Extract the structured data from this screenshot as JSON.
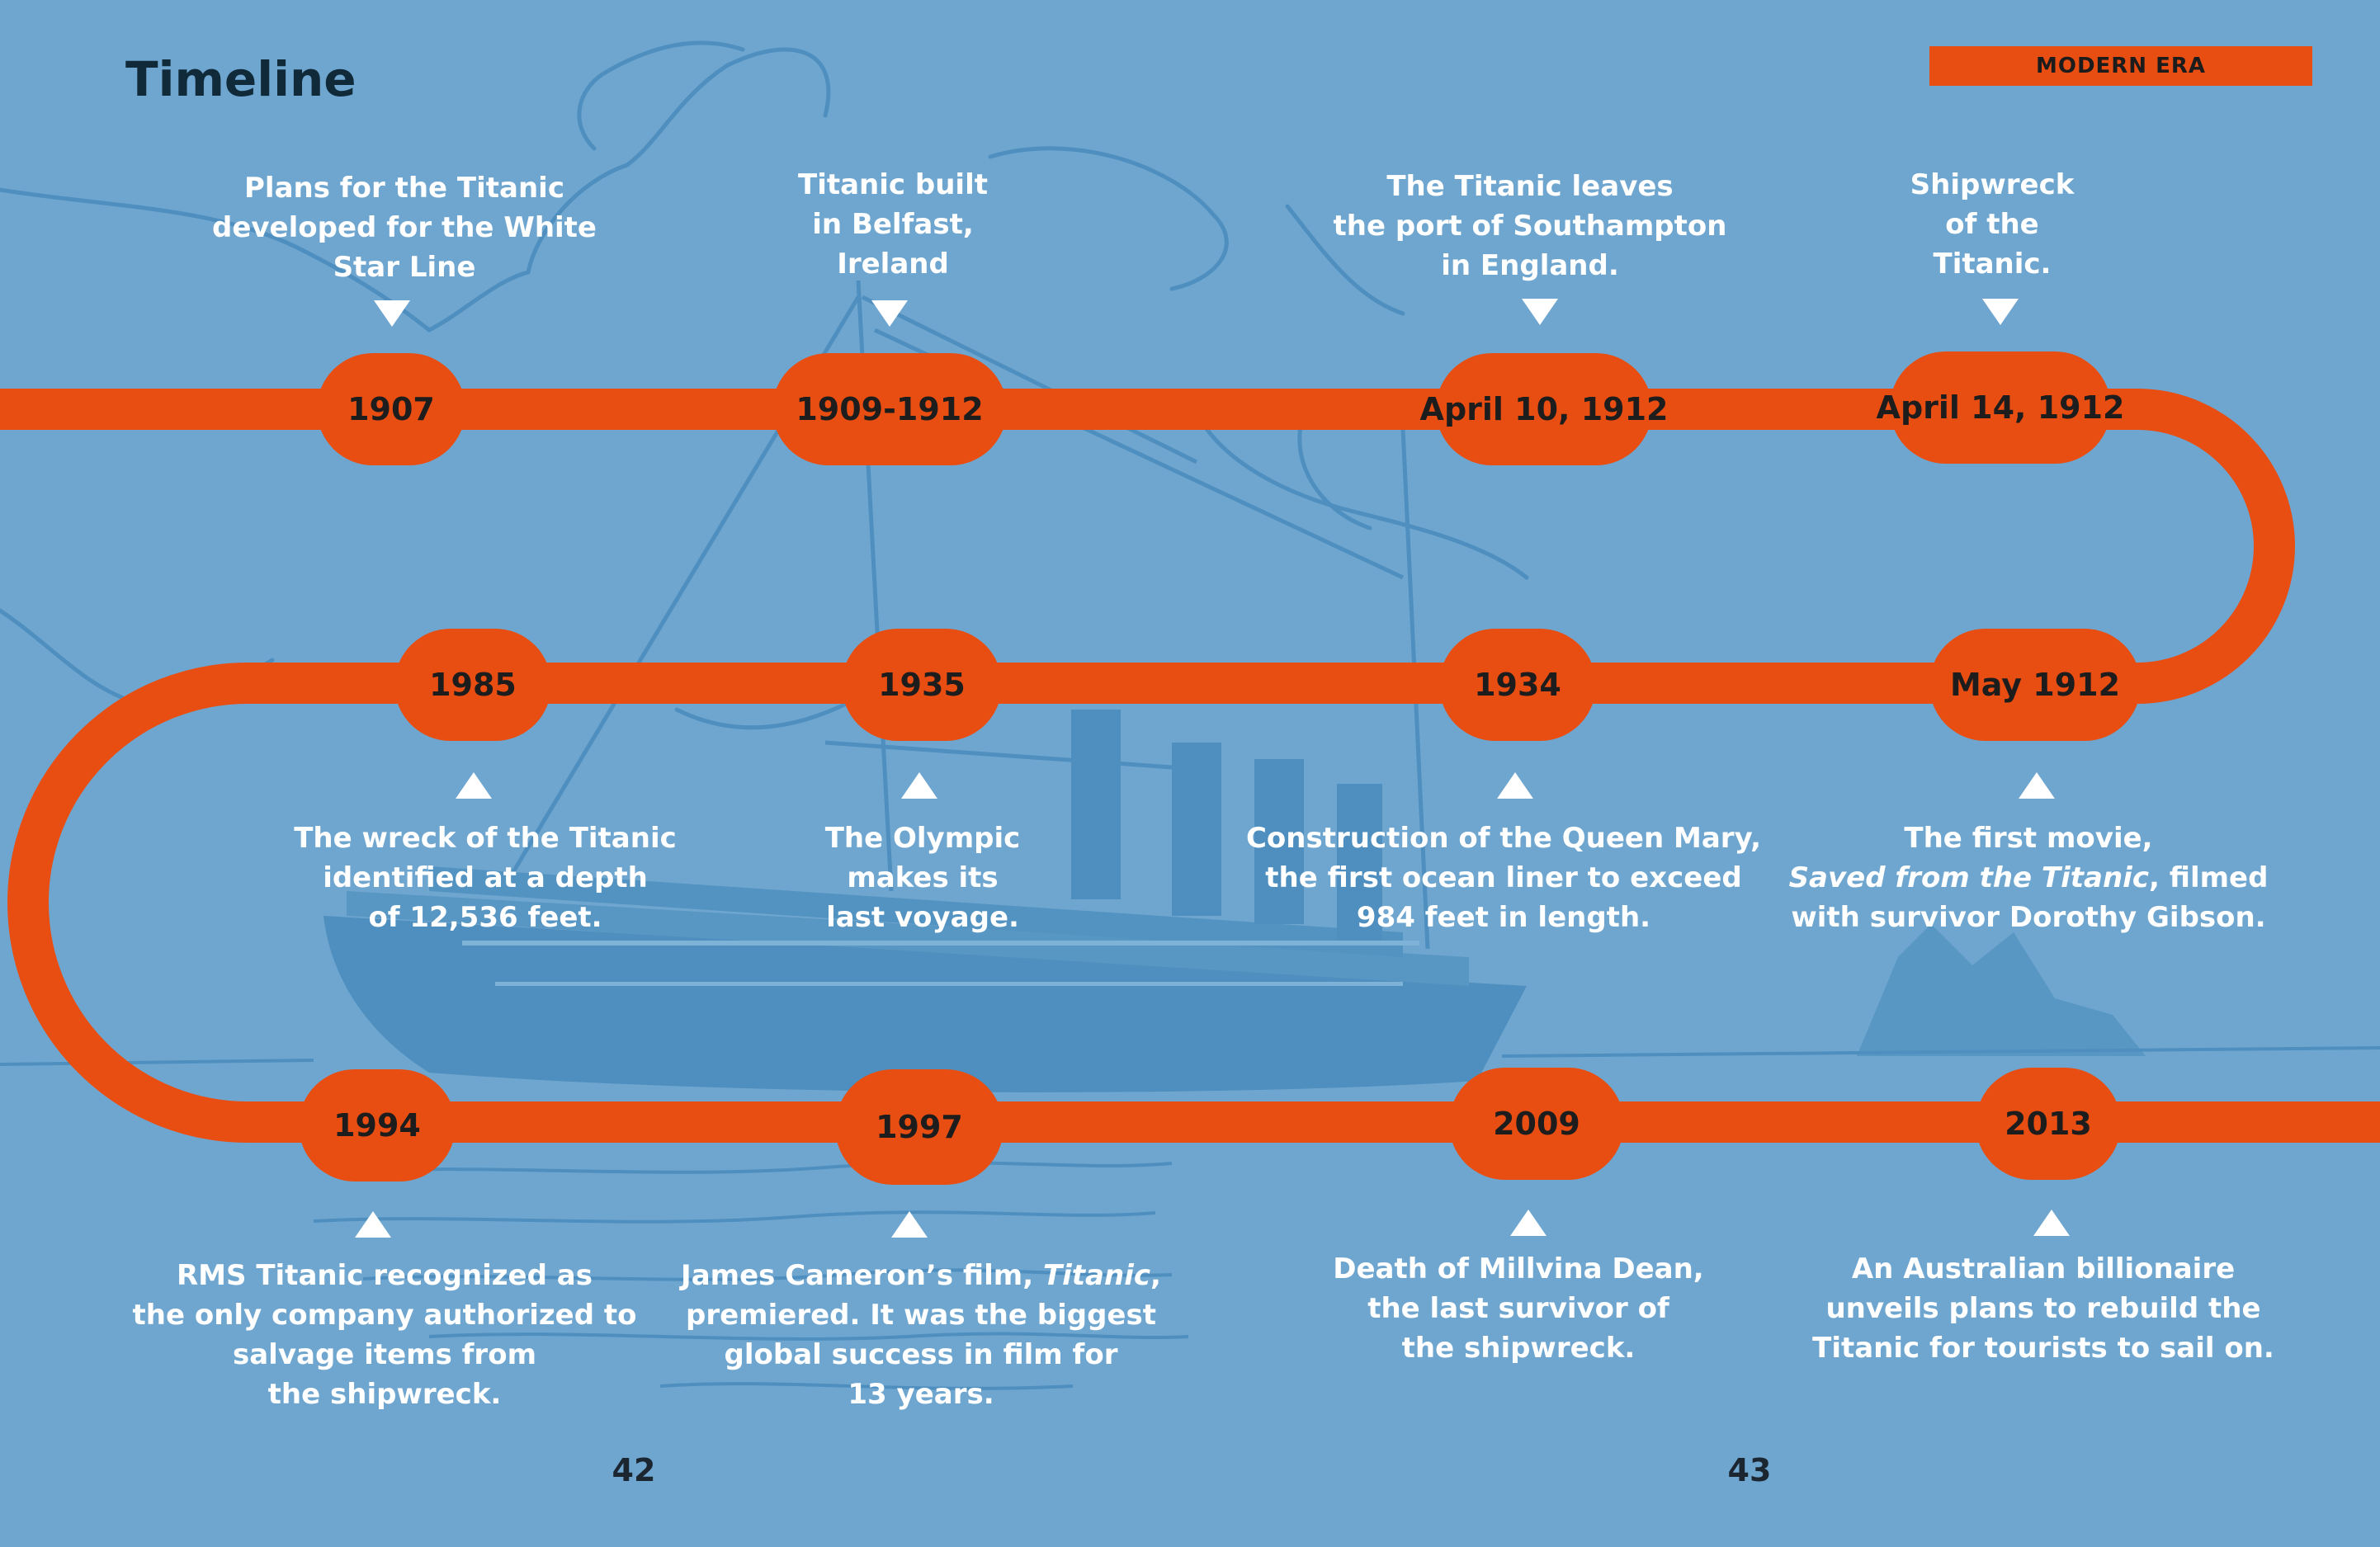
{
  "page": {
    "title": "Timeline",
    "section_tag": "MODERN ERA",
    "page_numbers": {
      "left": "42",
      "right": "43"
    }
  },
  "colors": {
    "background": "#6fa6cf",
    "track": "#e84e12",
    "caption_text": "#ffffff",
    "title_text": "#102a3a",
    "illustration": "#4e8fbf"
  },
  "events": [
    {
      "date": "1907",
      "caption": [
        "Plans for the Titanic",
        "developed for the White",
        "Star Line"
      ]
    },
    {
      "date": "1909-1912",
      "caption": [
        "Titanic built",
        "in Belfast,",
        "Ireland"
      ]
    },
    {
      "date": "April 10, 1912",
      "caption": [
        "The Titanic leaves",
        "the port of Southampton",
        "in England."
      ]
    },
    {
      "date": "April 14, 1912",
      "caption": [
        "Shipwreck",
        "of the",
        "Titanic."
      ]
    },
    {
      "date": "1985",
      "caption": [
        "The wreck of the Titanic",
        "identified at a depth",
        "of 12,536 feet."
      ]
    },
    {
      "date": "1935",
      "caption": [
        "The Olympic",
        "makes its",
        "last voyage."
      ]
    },
    {
      "date": "1934",
      "caption": [
        "Construction of the Queen Mary,",
        "the first ocean liner to exceed",
        "984 feet in length."
      ]
    },
    {
      "date": "May 1912",
      "caption_parts": [
        [
          "The first movie,"
        ],
        [
          "Saved from the Titanic",
          ", filmed"
        ],
        [
          "with survivor Dorothy Gibson."
        ]
      ]
    },
    {
      "date": "1994",
      "caption": [
        "RMS Titanic recognized as",
        "the only company authorized to",
        "salvage items from",
        "the shipwreck."
      ]
    },
    {
      "date": "1997",
      "caption_parts": [
        [
          "James Cameron’s film, ",
          "Titanic",
          ","
        ],
        [
          "premiered.  It was the biggest"
        ],
        [
          "global success in film for"
        ],
        [
          "13 years."
        ]
      ]
    },
    {
      "date": "2009",
      "caption": [
        "Death of Millvina Dean,",
        "the last survivor of",
        "the shipwreck."
      ]
    },
    {
      "date": "2013",
      "caption": [
        "An Australian billionaire",
        "unveils plans to rebuild the",
        "Titanic for tourists to sail on."
      ]
    }
  ]
}
